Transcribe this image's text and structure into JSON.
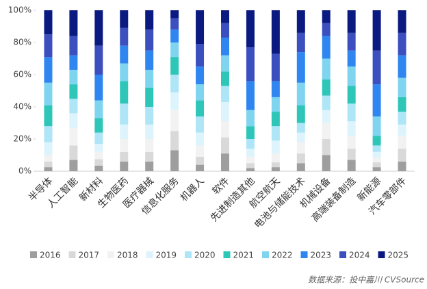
{
  "chart_data": {
    "type": "stacked_bar_100",
    "categories": [
      "半导体",
      "人工智能",
      "新材料",
      "生物医药",
      "医疗器械",
      "信息化服务",
      "机器人",
      "软件",
      "先进制造其他",
      "航空航天",
      "电池与储能技术",
      "机械设备",
      "高端装备制造",
      "新能源",
      "汽车零部件"
    ],
    "series": [
      {
        "name": "2016",
        "color": "#9e9e9e",
        "values": [
          2.5,
          7,
          3.5,
          6,
          6,
          13,
          4,
          11,
          2,
          2.5,
          5,
          10,
          7,
          2.5,
          6
        ]
      },
      {
        "name": "2017",
        "color": "#d9d9d9",
        "values": [
          3.5,
          9,
          4,
          6,
          6,
          12,
          5,
          10,
          3,
          3,
          6,
          10,
          7,
          3,
          8
        ]
      },
      {
        "name": "2018",
        "color": "#f2f2f2",
        "values": [
          4,
          11,
          4.5,
          8,
          8,
          13,
          7,
          10,
          4,
          5.5,
          7,
          10,
          8,
          3,
          8
        ]
      },
      {
        "name": "2019",
        "color": "#ddf4fc",
        "values": [
          8,
          9,
          5,
          9,
          9,
          11,
          8,
          12,
          5,
          8,
          6,
          8,
          9,
          3.5,
          7
        ]
      },
      {
        "name": "2020",
        "color": "#aee5f7",
        "values": [
          10,
          9,
          7,
          13,
          11,
          11,
          10,
          10,
          6,
          9,
          6,
          9,
          11,
          4,
          8
        ]
      },
      {
        "name": "2021",
        "color": "#2ec6b8",
        "values": [
          13,
          9,
          9,
          14,
          12,
          11,
          10,
          9,
          8,
          9,
          11,
          10,
          11,
          6,
          9
        ]
      },
      {
        "name": "2022",
        "color": "#7fd4f0",
        "values": [
          14,
          9,
          11,
          11,
          11,
          9,
          10,
          10,
          10,
          9,
          14,
          13,
          12,
          12,
          12
        ]
      },
      {
        "name": "2023",
        "color": "#2f86f0",
        "values": [
          16,
          9,
          16,
          11,
          12,
          8,
          11,
          11,
          18,
          10,
          19,
          14,
          10,
          20,
          14
        ]
      },
      {
        "name": "2024",
        "color": "#3c4fbf",
        "values": [
          14,
          12,
          18,
          11,
          13,
          7,
          14,
          9,
          21,
          17,
          12,
          8,
          11,
          21,
          14
        ]
      },
      {
        "name": "2025",
        "color": "#0b1a80",
        "values": [
          15,
          16,
          22,
          11,
          12,
          5,
          21,
          8,
          23,
          27,
          14,
          8,
          14,
          25,
          14
        ]
      }
    ],
    "ylim": [
      0,
      100
    ],
    "yticks": [
      {
        "value": 0,
        "label": "0%"
      },
      {
        "value": 20,
        "label": "20%"
      },
      {
        "value": 40,
        "label": "40%"
      },
      {
        "value": 60,
        "label": "60%"
      },
      {
        "value": 80,
        "label": "80%"
      },
      {
        "value": 100,
        "label": "100%"
      }
    ],
    "legend": "bottom",
    "source": "数据来源：投中嘉川 CVSource"
  }
}
